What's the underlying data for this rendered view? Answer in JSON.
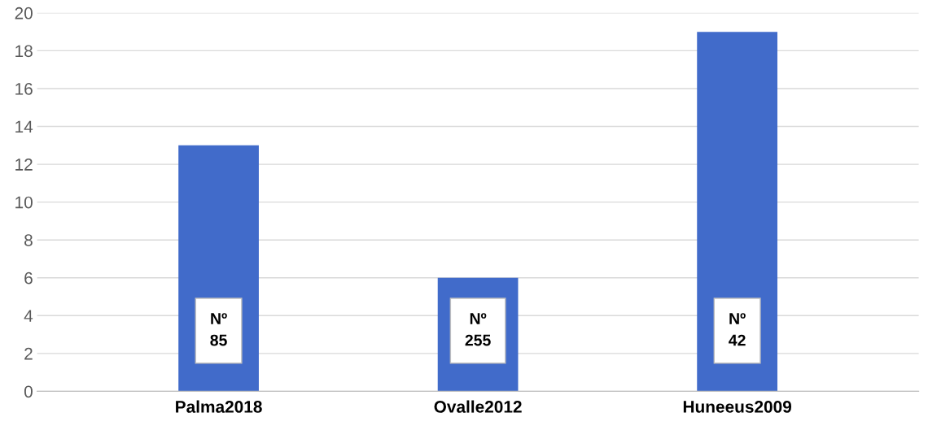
{
  "chart_data": {
    "type": "bar",
    "categories": [
      "Palma2018",
      "Ovalle2012",
      "Huneeus2009"
    ],
    "values": [
      13,
      6,
      19
    ],
    "color": "#416bca",
    "ylim": [
      0,
      20
    ],
    "yticks": [
      0,
      2,
      4,
      6,
      8,
      10,
      12,
      14,
      16,
      18,
      20
    ],
    "grid": "y",
    "annotations": [
      "Nº\n85",
      "Nº\n255",
      "Nº\n42"
    ]
  }
}
